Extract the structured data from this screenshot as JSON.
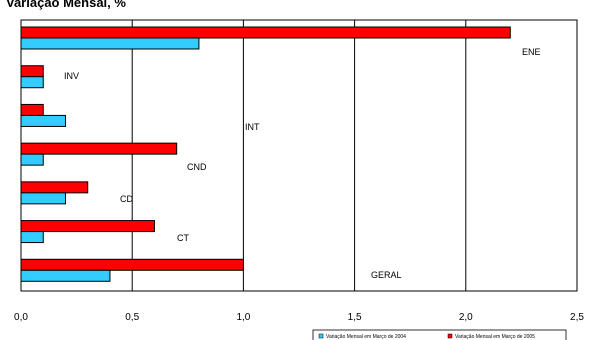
{
  "chart_data": {
    "type": "bar",
    "orientation": "horizontal",
    "title": "Variação Mensal, %",
    "categories": [
      "ENE",
      "INV",
      "INT",
      "CND",
      "CD",
      "CT",
      "GERAL"
    ],
    "series": [
      {
        "name": "Variação Mensal em Março de 2004",
        "color": "#33CCFF",
        "values": [
          0.8,
          0.1,
          0.2,
          0.1,
          0.2,
          0.1,
          0.4
        ]
      },
      {
        "name": "Variação Mensal em Março de 2005",
        "color": "#FF0000",
        "values": [
          2.2,
          0.1,
          0.1,
          0.7,
          0.3,
          0.6,
          1.0
        ]
      }
    ],
    "xlim": [
      0,
      2.5
    ],
    "xticks": [
      "0,0",
      "0,5",
      "1,0",
      "1,5",
      "2,0",
      "2,5"
    ],
    "grid": true,
    "legend_position": "bottom-right"
  }
}
